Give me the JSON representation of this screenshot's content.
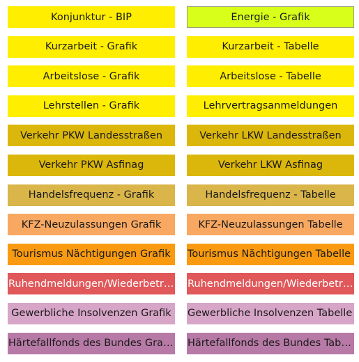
{
  "tiles": [
    {
      "left": "Konjunktur - BIP",
      "right": "Energie - Grafik"
    },
    {
      "left": "Kurzarbeit - Grafik",
      "right": "Kurzarbeit - Tabelle"
    },
    {
      "left": "Arbeitslose - Grafik",
      "right": "Arbeitslose - Tabelle"
    },
    {
      "left": "Lehrstellen - Grafik",
      "right": "Lehrvertragsanmeldungen"
    },
    {
      "left": "Verkehr PKW Landesstraßen",
      "right": "Verkehr LKW Landesstraßen"
    },
    {
      "left": "Verkehr PKW Asfinag",
      "right": "Verkehr LKW Asfinag"
    },
    {
      "left": "Handelsfrequenz - Grafik",
      "right": "Handelsfrequenz - Tabelle"
    },
    {
      "left": "KFZ-Neuzulassungen Grafik",
      "right": "KFZ-Neuzulassungen Tabelle"
    },
    {
      "left": "Tourismus Nächtigungen Grafik",
      "right": "Tourismus Nächtigungen Tabelle"
    },
    {
      "left": "Ruhendmeldungen/Wiederbetriebnahmen Grafik",
      "right": "Ruhendmeldungen/Wiederbetriebnahmen Tabelle"
    },
    {
      "left": "Gewerbliche Insolvenzen Grafik",
      "right": "Gewerbliche Insolvenzen Tabelle"
    },
    {
      "left": "Härtefallfonds des Bundes Grafik",
      "right": "Härtefallfonds des Bundes Tabelle"
    }
  ],
  "colors": {
    "yellow": "#ffee00",
    "lime": "#d8ff1a",
    "mustard": "#dcb70b",
    "khaki": "#d9b54a",
    "peach": "#f9a862",
    "orange": "#f99a11",
    "red": "#e0585a",
    "lilac": "#d7a5c7",
    "mauve": "#b77aa6"
  }
}
